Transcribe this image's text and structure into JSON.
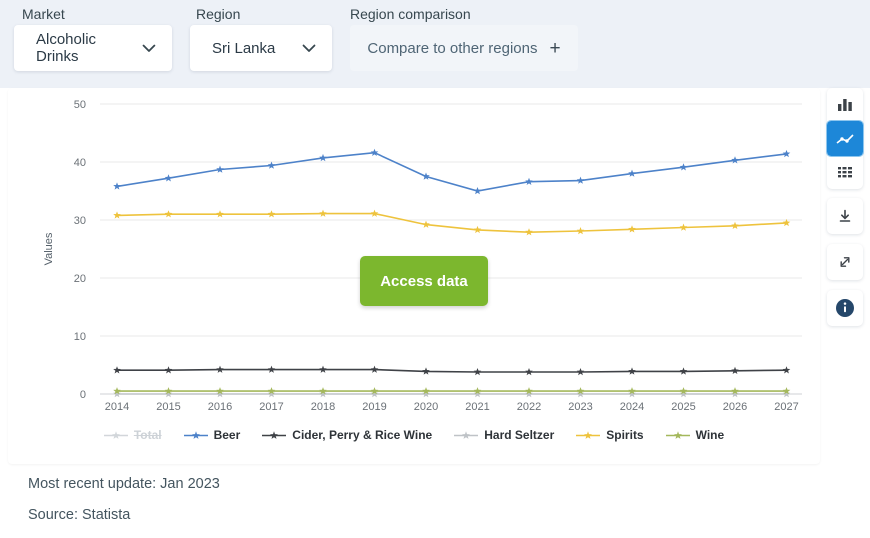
{
  "filters": {
    "market": {
      "label": "Market",
      "value": "Alcoholic Drinks"
    },
    "region": {
      "label": "Region",
      "value": "Sri Lanka"
    },
    "comparison": {
      "label": "Region comparison",
      "button_label": "Compare to other regions",
      "plus_label": "+"
    }
  },
  "overlay": {
    "access_label": "Access data"
  },
  "chart_data": {
    "type": "line",
    "x": [
      2014,
      2015,
      2016,
      2017,
      2018,
      2019,
      2020,
      2021,
      2022,
      2023,
      2024,
      2025,
      2026,
      2027
    ],
    "series": [
      {
        "name": "Total",
        "color": "#d2d6da",
        "disabled": true,
        "values": null
      },
      {
        "name": "Beer",
        "color": "#4d82c9",
        "disabled": false,
        "values": [
          35.8,
          37.2,
          38.7,
          39.4,
          40.7,
          41.6,
          37.5,
          35.0,
          36.6,
          36.8,
          38.0,
          39.1,
          40.3,
          41.4
        ]
      },
      {
        "name": "Cider, Perry & Rice Wine",
        "color": "#3f4247",
        "disabled": false,
        "values": [
          4.1,
          4.1,
          4.2,
          4.2,
          4.2,
          4.2,
          3.9,
          3.8,
          3.8,
          3.8,
          3.9,
          3.9,
          4.0,
          4.1
        ]
      },
      {
        "name": "Hard Seltzer",
        "color": "#bfc3c7",
        "disabled": false,
        "values": [
          0,
          0,
          0,
          0,
          0,
          0,
          0,
          0,
          0,
          0,
          0,
          0,
          0,
          0
        ]
      },
      {
        "name": "Spirits",
        "color": "#eec33d",
        "disabled": false,
        "values": [
          30.8,
          31.0,
          31.0,
          31.0,
          31.1,
          31.1,
          29.2,
          28.3,
          27.9,
          28.1,
          28.4,
          28.7,
          29.0,
          29.5
        ]
      },
      {
        "name": "Wine",
        "color": "#a4b85c",
        "disabled": false,
        "values": [
          0.5,
          0.5,
          0.5,
          0.5,
          0.5,
          0.5,
          0.5,
          0.5,
          0.5,
          0.5,
          0.5,
          0.5,
          0.5,
          0.5
        ]
      }
    ],
    "title": "",
    "xlabel": "",
    "ylabel": "Values",
    "ylim": [
      0,
      50
    ],
    "yticks": [
      0,
      10,
      20,
      30,
      40,
      50
    ],
    "grid": true,
    "legend_position": "bottom"
  },
  "toolbar": {
    "icons": [
      "bar-chart-icon",
      "line-chart-icon",
      "table-icon",
      "download-icon",
      "fullscreen-icon",
      "info-icon"
    ],
    "selected": "line-chart-icon",
    "selected_color": "#1d87d8"
  },
  "footer": {
    "updated": "Most recent update: Jan 2023",
    "source": "Source: Statista"
  },
  "colors": {
    "accent_green": "#7cb72e",
    "filter_bar_bg": "#edf1f7",
    "info_circle": "#25476a"
  }
}
